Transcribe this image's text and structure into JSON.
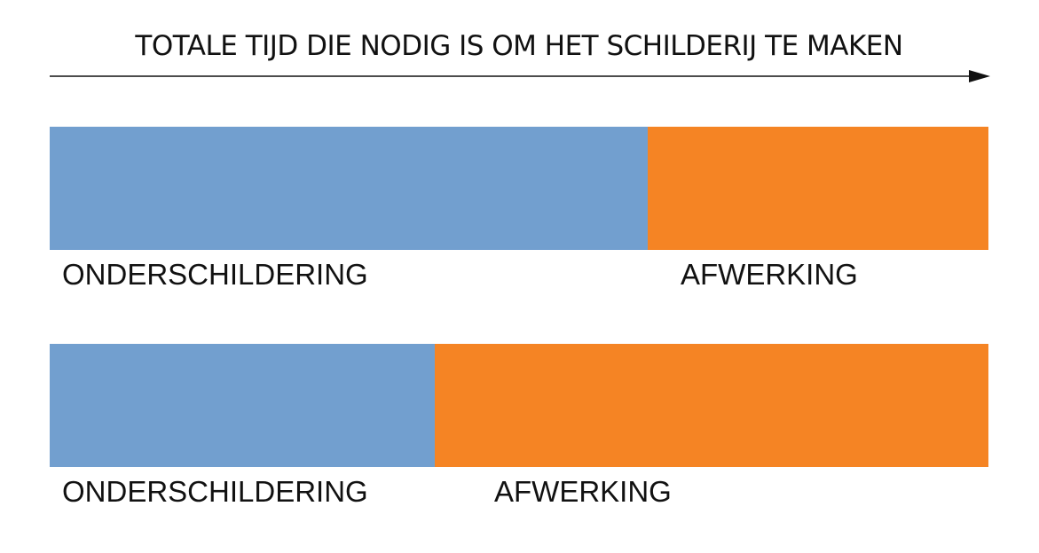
{
  "title": "TOTALE TIJD DIE NODIG IS OM HET SCHILDERIJ TE MAKEN",
  "colors": {
    "underpainting": "#729fcf",
    "finishing": "#f58424",
    "axis": "#111111"
  },
  "bars": [
    {
      "underpainting_fraction": 0.637,
      "underpainting_label": "ONDERSCHILDERING",
      "finishing_label": "AFWERKING"
    },
    {
      "underpainting_fraction": 0.41,
      "underpainting_label": "ONDERSCHILDERING",
      "finishing_label": "AFWERKING"
    }
  ]
}
